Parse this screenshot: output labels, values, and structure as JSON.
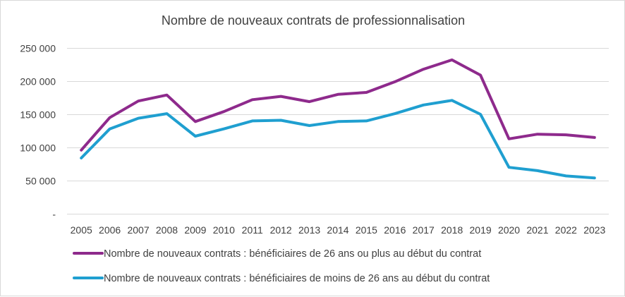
{
  "chart_data": {
    "type": "line",
    "title": "Nombre de nouveaux contrats de professionnalisation",
    "xlabel": "",
    "ylabel": "",
    "categories": [
      "2005",
      "2006",
      "2007",
      "2008",
      "2009",
      "2010",
      "2011",
      "2012",
      "2013",
      "2014",
      "2015",
      "2016",
      "2017",
      "2018",
      "2019",
      "2020",
      "2021",
      "2022",
      "2023"
    ],
    "ylim": [
      0,
      250000
    ],
    "yticks": [
      {
        "value": 0,
        "label": "-"
      },
      {
        "value": 50000,
        "label": "50 000"
      },
      {
        "value": 100000,
        "label": "100 000"
      },
      {
        "value": 150000,
        "label": "150 000"
      },
      {
        "value": 200000,
        "label": "200 000"
      },
      {
        "value": 250000,
        "label": "250 000"
      }
    ],
    "grid": true,
    "legend_position": "bottom",
    "series": [
      {
        "name": "Nombre de nouveaux contrats : bénéficiaires de 26 ans ou plus au début du contrat",
        "color": "#8e2a8c",
        "values": [
          96000,
          145000,
          170000,
          179000,
          139000,
          154000,
          172000,
          177000,
          169000,
          180000,
          183000,
          199000,
          218000,
          232000,
          209000,
          113000,
          120000,
          119000,
          115000
        ]
      },
      {
        "name": "Nombre de nouveaux contrats : bénéficiaires de moins de 26 ans au début du contrat",
        "color": "#1f9fd0",
        "values": [
          84000,
          128000,
          144000,
          151000,
          117000,
          128000,
          140000,
          141000,
          133000,
          139000,
          140000,
          151000,
          164000,
          171000,
          150000,
          70000,
          65000,
          57000,
          54000
        ]
      }
    ]
  }
}
